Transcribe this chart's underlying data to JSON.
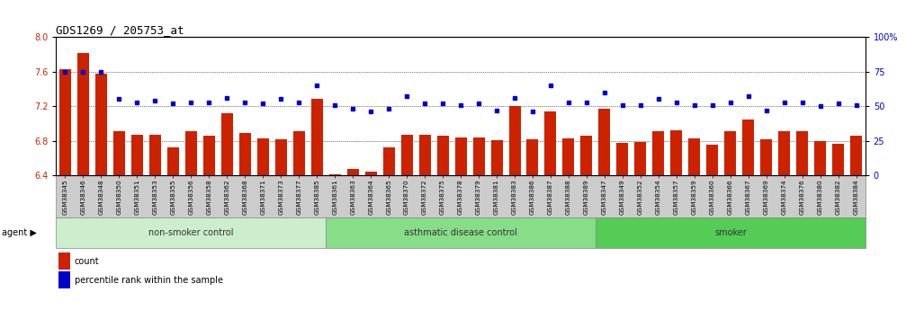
{
  "title": "GDS1269 / 205753_at",
  "samples": [
    "GSM38345",
    "GSM38346",
    "GSM38348",
    "GSM38350",
    "GSM38351",
    "GSM38353",
    "GSM38355",
    "GSM38356",
    "GSM38358",
    "GSM38362",
    "GSM38368",
    "GSM38371",
    "GSM38373",
    "GSM38377",
    "GSM38385",
    "GSM38361",
    "GSM38363",
    "GSM38364",
    "GSM38365",
    "GSM38370",
    "GSM38372",
    "GSM38375",
    "GSM38378",
    "GSM38379",
    "GSM38381",
    "GSM38383",
    "GSM38386",
    "GSM38387",
    "GSM38388",
    "GSM38389",
    "GSM38347",
    "GSM38349",
    "GSM38352",
    "GSM38354",
    "GSM38357",
    "GSM38359",
    "GSM38360",
    "GSM38366",
    "GSM38367",
    "GSM38369",
    "GSM38374",
    "GSM38376",
    "GSM38380",
    "GSM38382",
    "GSM38384"
  ],
  "bar_values": [
    7.63,
    7.82,
    7.58,
    6.91,
    6.87,
    6.87,
    6.72,
    6.91,
    6.86,
    7.12,
    6.89,
    6.83,
    6.82,
    6.91,
    7.29,
    6.41,
    6.47,
    6.44,
    6.72,
    6.87,
    6.87,
    6.86,
    6.84,
    6.84,
    6.81,
    7.2,
    6.82,
    7.14,
    6.83,
    6.86,
    7.17,
    6.77,
    6.79,
    6.91,
    6.92,
    6.83,
    6.75,
    6.91,
    7.05,
    6.82,
    6.91,
    6.91,
    6.8,
    6.76,
    6.86
  ],
  "percentile_values": [
    75,
    75,
    75,
    55,
    53,
    54,
    52,
    53,
    53,
    56,
    53,
    52,
    55,
    53,
    65,
    51,
    48,
    46,
    48,
    57,
    52,
    52,
    51,
    52,
    47,
    56,
    46,
    65,
    53,
    53,
    60,
    51,
    51,
    55,
    53,
    51,
    51,
    53,
    57,
    47,
    53,
    53,
    50,
    52,
    51
  ],
  "groups": [
    {
      "label": "non-smoker control",
      "start": 0,
      "end": 15,
      "color": "#cceecc"
    },
    {
      "label": "asthmatic disease control",
      "start": 15,
      "end": 30,
      "color": "#88dd88"
    },
    {
      "label": "smoker",
      "start": 30,
      "end": 45,
      "color": "#55cc55"
    }
  ],
  "ylim_left": [
    6.4,
    8.0
  ],
  "ylim_right": [
    0,
    100
  ],
  "yticks_left": [
    6.4,
    6.8,
    7.2,
    7.6,
    8.0
  ],
  "yticks_right": [
    0,
    25,
    50,
    75,
    100
  ],
  "ytick_right_labels": [
    "0",
    "25",
    "50",
    "75",
    "100%"
  ],
  "grid_lines": [
    6.8,
    7.2,
    7.6
  ],
  "bar_color": "#cc2200",
  "dot_color": "#0000cc",
  "background_color": "#ffffff",
  "xtick_area_color": "#cccccc",
  "title_fontsize": 9,
  "axis_fontsize": 7,
  "tick_fontsize": 5.2,
  "group_fontsize": 7,
  "legend_items": [
    "count",
    "percentile rank within the sample"
  ],
  "agent_label": "agent ▶"
}
